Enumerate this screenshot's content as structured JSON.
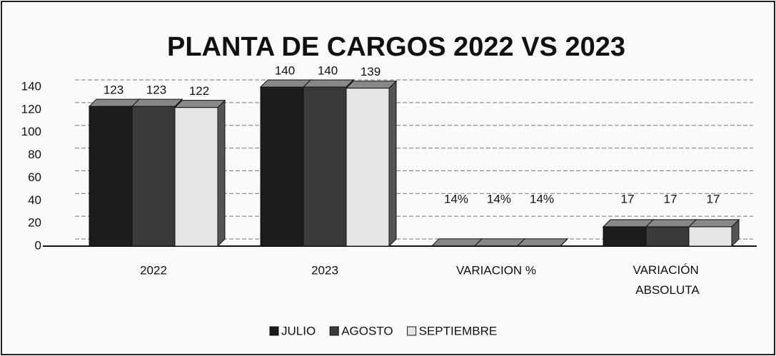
{
  "chart_data": {
    "type": "bar",
    "title": "PLANTA DE CARGOS 2022 VS 2023",
    "categories": [
      "2022",
      "2023",
      "VARIACION %",
      "VARIACIÓN ABSOLUTA"
    ],
    "series": [
      {
        "name": "JULIO",
        "color": "#1c1c1c",
        "values": [
          123,
          140,
          0.14,
          17
        ],
        "value_labels": [
          "123",
          "140",
          "14%",
          "17"
        ]
      },
      {
        "name": "AGOSTO",
        "color": "#3a3a3a",
        "values": [
          123,
          140,
          0.14,
          17
        ],
        "value_labels": [
          "123",
          "140",
          "14%",
          "17"
        ]
      },
      {
        "name": "SEPTIEMBRE",
        "color": "#e6e6e6",
        "values": [
          122,
          139,
          0.14,
          17
        ],
        "value_labels": [
          "122",
          "139",
          "14%",
          "17"
        ]
      }
    ],
    "ylim": [
      0,
      140
    ],
    "yticks": [
      0,
      20,
      40,
      60,
      80,
      100,
      120,
      140
    ],
    "grid": true,
    "legend": "bottom"
  }
}
